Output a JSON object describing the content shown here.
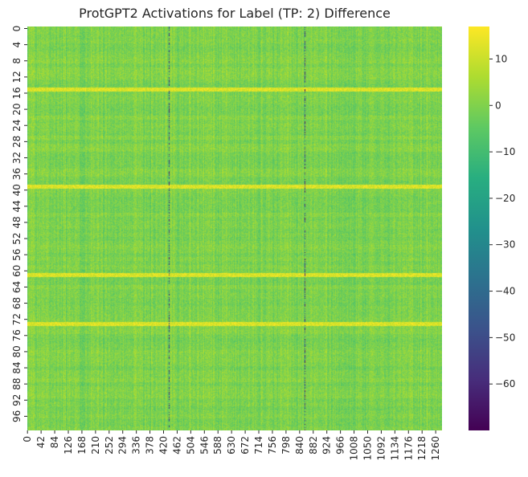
{
  "chart_data": {
    "type": "heatmap",
    "title": "ProtGPT2 Activations for Label (TP: 2) Difference",
    "xlabel": "",
    "ylabel": "",
    "rows": 100,
    "columns": 1280,
    "y_tick_labels": [
      "0",
      "4",
      "8",
      "12",
      "16",
      "20",
      "24",
      "28",
      "32",
      "36",
      "40",
      "44",
      "48",
      "52",
      "56",
      "60",
      "64",
      "68",
      "72",
      "76",
      "80",
      "84",
      "88",
      "92",
      "96"
    ],
    "x_tick_labels": [
      "0",
      "42",
      "84",
      "126",
      "168",
      "210",
      "252",
      "294",
      "336",
      "378",
      "420",
      "462",
      "504",
      "546",
      "588",
      "630",
      "672",
      "714",
      "756",
      "798",
      "840",
      "882",
      "924",
      "966",
      "1008",
      "1050",
      "1092",
      "1134",
      "1176",
      "1218",
      "1260"
    ],
    "colorbar": {
      "colormap": "viridis",
      "range": [
        -70,
        17
      ],
      "tick_values": [
        10,
        0,
        -10,
        -20,
        -30,
        -40,
        -50,
        -60
      ],
      "tick_labels": [
        "10",
        "0",
        "−10",
        "−20",
        "−30",
        "−40",
        "−50",
        "−60"
      ]
    },
    "bright_rows": [
      15,
      39,
      61,
      73
    ],
    "dark_columns": [
      6,
      435,
      436,
      437,
      854,
      855,
      856
    ],
    "grid": false,
    "legend": "colorbar right"
  }
}
